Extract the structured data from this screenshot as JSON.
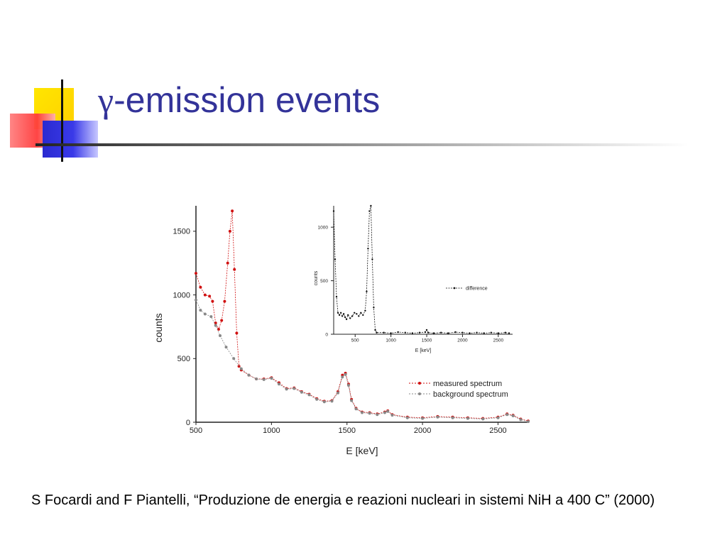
{
  "slide": {
    "title_symbol": "γ",
    "title_text": "-emission events",
    "citation": "S Focardi and F Piantelli, “Produzione de energia e reazioni nucleari in sistemi NiH a 400 C” (2000)"
  },
  "colors": {
    "title": "#333399",
    "measured": "#d01010",
    "background": "#888888",
    "difference": "#111111"
  },
  "chart_data": [
    {
      "type": "scatter",
      "title": "",
      "xlabel": "E [keV]",
      "ylabel": "counts",
      "xlim": [
        500,
        2700
      ],
      "ylim": [
        0,
        1700
      ],
      "xticks": [
        "500",
        "1000",
        "1500",
        "2000",
        "2500"
      ],
      "yticks": [
        "0",
        "500",
        "1000",
        "1500"
      ],
      "legend_position": "right",
      "series": [
        {
          "name": "measured spectrum",
          "x": [
            500,
            530,
            560,
            590,
            610,
            630,
            650,
            670,
            690,
            710,
            725,
            740,
            755,
            770,
            785,
            800,
            850,
            900,
            950,
            1000,
            1050,
            1100,
            1150,
            1200,
            1250,
            1300,
            1350,
            1400,
            1440,
            1470,
            1490,
            1510,
            1530,
            1560,
            1600,
            1650,
            1700,
            1750,
            1770,
            1800,
            1900,
            2000,
            2100,
            2200,
            2300,
            2400,
            2500,
            2560,
            2600,
            2650,
            2700
          ],
          "y": [
            1170,
            1060,
            1000,
            990,
            950,
            780,
            730,
            800,
            950,
            1250,
            1500,
            1660,
            1200,
            700,
            440,
            410,
            370,
            340,
            340,
            350,
            310,
            265,
            270,
            240,
            220,
            185,
            165,
            170,
            240,
            370,
            385,
            300,
            180,
            110,
            80,
            75,
            65,
            80,
            90,
            60,
            40,
            35,
            45,
            40,
            35,
            30,
            40,
            65,
            55,
            25,
            10
          ]
        },
        {
          "name": "background spectrum",
          "x": [
            500,
            530,
            560,
            600,
            630,
            660,
            700,
            750,
            800,
            850,
            900,
            950,
            1000,
            1050,
            1100,
            1150,
            1200,
            1250,
            1300,
            1350,
            1400,
            1440,
            1470,
            1490,
            1510,
            1530,
            1560,
            1600,
            1650,
            1700,
            1750,
            1770,
            1800,
            1900,
            2000,
            2100,
            2200,
            2300,
            2400,
            2500,
            2560,
            2600,
            2650,
            2700
          ],
          "y": [
            960,
            880,
            850,
            830,
            760,
            680,
            590,
            500,
            420,
            370,
            340,
            335,
            345,
            300,
            260,
            265,
            235,
            215,
            180,
            160,
            165,
            230,
            355,
            375,
            290,
            170,
            105,
            75,
            70,
            60,
            75,
            85,
            55,
            35,
            30,
            40,
            35,
            30,
            25,
            35,
            60,
            50,
            20,
            5
          ]
        }
      ]
    },
    {
      "type": "scatter",
      "title": "",
      "xlabel": "E [keV]",
      "ylabel": "counts",
      "xlim": [
        200,
        2700
      ],
      "ylim": [
        0,
        1200
      ],
      "xticks": [
        "500",
        "1000",
        "1500",
        "2000",
        "2500"
      ],
      "yticks": [
        "0",
        "500",
        "1000"
      ],
      "legend_position": "right",
      "series": [
        {
          "name": "difference",
          "x": [
            200,
            220,
            240,
            260,
            280,
            300,
            320,
            340,
            360,
            380,
            400,
            430,
            460,
            490,
            520,
            550,
            580,
            610,
            640,
            660,
            680,
            700,
            720,
            740,
            760,
            780,
            800,
            900,
            1000,
            1100,
            1200,
            1300,
            1400,
            1480,
            1500,
            1520,
            1600,
            1700,
            1800,
            1900,
            2000,
            2100,
            2200,
            2300,
            2400,
            2500,
            2600,
            2650
          ],
          "y": [
            1150,
            700,
            350,
            200,
            180,
            200,
            170,
            190,
            160,
            140,
            180,
            150,
            170,
            200,
            190,
            170,
            200,
            180,
            220,
            400,
            800,
            1150,
            1200,
            700,
            250,
            40,
            15,
            15,
            10,
            20,
            15,
            10,
            15,
            20,
            40,
            15,
            10,
            15,
            10,
            20,
            15,
            10,
            15,
            10,
            15,
            10,
            15,
            10
          ]
        }
      ]
    }
  ]
}
